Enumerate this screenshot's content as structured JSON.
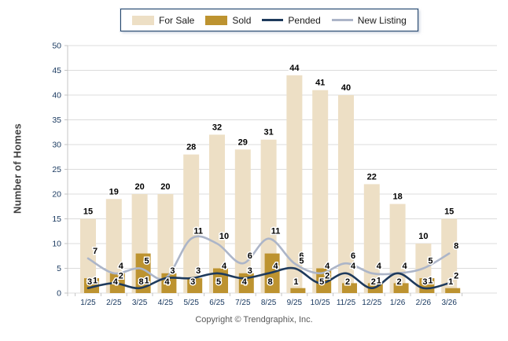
{
  "legend": {
    "items": [
      {
        "label": "For Sale",
        "swatch": "bar",
        "color": "#eddfc5"
      },
      {
        "label": "Sold",
        "swatch": "bar",
        "color": "#bd9330"
      },
      {
        "label": "Pended",
        "swatch": "line",
        "color": "#1e3a5c"
      },
      {
        "label": "New Listing",
        "swatch": "line",
        "color": "#acb5c8"
      }
    ]
  },
  "footer": {
    "copyright": "Copyright © Trendgraphix, Inc."
  },
  "chart_data": {
    "type": "combo-bar-line",
    "title": "",
    "ylabel": "Number of Homes",
    "xlabel": "",
    "ylim": [
      0,
      50
    ],
    "y_ticks": [
      0,
      5,
      10,
      15,
      20,
      25,
      30,
      35,
      40,
      45,
      50
    ],
    "grid": true,
    "legend_position": "top",
    "categories": [
      "1/25",
      "2/25",
      "3/25",
      "4/25",
      "5/25",
      "6/25",
      "7/25",
      "8/25",
      "9/25",
      "10/25",
      "11/25",
      "12/25",
      "1/26",
      "2/26",
      "3/26"
    ],
    "series": [
      {
        "name": "For Sale",
        "type": "bar",
        "color": "#eddfc5",
        "values": [
          15,
          19,
          20,
          20,
          28,
          32,
          29,
          31,
          44,
          41,
          40,
          22,
          18,
          10,
          15
        ]
      },
      {
        "name": "Sold",
        "type": "bar",
        "color": "#bd9330",
        "values": [
          3,
          4,
          8,
          4,
          3,
          5,
          4,
          8,
          1,
          5,
          2,
          2,
          2,
          3,
          1
        ]
      },
      {
        "name": "Pended",
        "type": "line",
        "color": "#1e3a5c",
        "values": [
          1,
          2,
          1,
          3,
          3,
          4,
          3,
          4,
          5,
          2,
          4,
          1,
          4,
          1,
          2
        ]
      },
      {
        "name": "New Listing",
        "type": "line",
        "color": "#acb5c8",
        "values": [
          7,
          4,
          5,
          3,
          11,
          10,
          6,
          11,
          6,
          4,
          6,
          4,
          4,
          5,
          8
        ]
      }
    ],
    "colors": {
      "grid": "#dcdcdc",
      "axis": "#c4c4c4",
      "tick_label": "#17375e",
      "value_label": "#000000"
    }
  }
}
